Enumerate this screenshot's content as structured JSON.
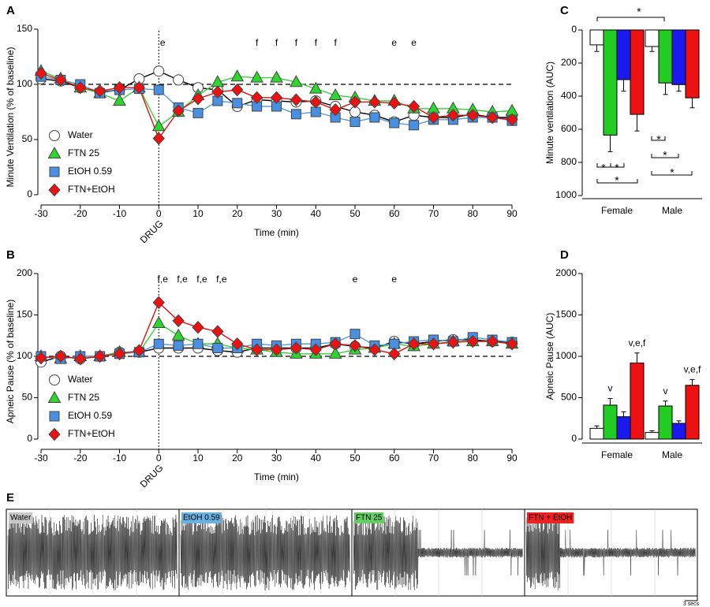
{
  "chart_data": [
    {
      "type": "line",
      "panel": "A",
      "ylabel": "Minute Ventilation (% of baseline)",
      "xlabel": "Time (min)",
      "x": [
        -30,
        -25,
        -20,
        -15,
        -10,
        -5,
        0,
        5,
        10,
        15,
        20,
        25,
        30,
        35,
        40,
        45,
        50,
        55,
        60,
        65,
        70,
        75,
        80,
        85,
        90
      ],
      "xlim": [
        -30,
        90
      ],
      "xticks": [
        -30,
        -20,
        -10,
        0,
        10,
        20,
        30,
        40,
        50,
        60,
        70,
        80,
        90
      ],
      "ylim": [
        0,
        150
      ],
      "yticks": [
        0,
        50,
        100,
        150
      ],
      "reference_line": 100,
      "event": {
        "x": 0,
        "label": "DRUG"
      },
      "legend": "lower left",
      "annotations": [
        {
          "x": 1,
          "text": "e"
        },
        {
          "x": 25,
          "text": "f"
        },
        {
          "x": 30,
          "text": "f"
        },
        {
          "x": 35,
          "text": "f"
        },
        {
          "x": 40,
          "text": "f"
        },
        {
          "x": 45,
          "text": "f"
        },
        {
          "x": 60,
          "text": "e"
        },
        {
          "x": 65,
          "text": "e"
        }
      ],
      "series": [
        {
          "name": "Water",
          "marker": "circle",
          "color": "#ffffff",
          "line_color": "#000000",
          "values": [
            105,
            103,
            97,
            93,
            95,
            105,
            112,
            104,
            97,
            95,
            80,
            86,
            85,
            84,
            85,
            80,
            75,
            72,
            66,
            72,
            70,
            70,
            73,
            70,
            70
          ]
        },
        {
          "name": "FTN 25",
          "marker": "triangle",
          "color": "#2fd62f",
          "line_color": "#3ccf3c",
          "values": [
            112,
            105,
            97,
            92,
            85,
            97,
            62,
            75,
            90,
            102,
            107,
            106,
            106,
            102,
            96,
            90,
            88,
            85,
            85,
            78,
            78,
            78,
            77,
            75,
            76
          ]
        },
        {
          "name": "EtOH 0.59",
          "marker": "square",
          "color": "#4a90e2",
          "line_color": "#5b9bd5",
          "values": [
            107,
            104,
            100,
            92,
            95,
            96,
            95,
            79,
            74,
            85,
            83,
            80,
            80,
            73,
            75,
            70,
            66,
            70,
            65,
            63,
            68,
            68,
            70,
            70,
            67
          ]
        },
        {
          "name": "FTN+EtOH",
          "marker": "diamond",
          "color": "#ee1111",
          "line_color": "#dd1111",
          "values": [
            110,
            104,
            97,
            94,
            97,
            97,
            51,
            76,
            87,
            93,
            95,
            88,
            88,
            86,
            84,
            77,
            84,
            84,
            83,
            80,
            70,
            72,
            72,
            70,
            68
          ]
        }
      ]
    },
    {
      "type": "line",
      "panel": "B",
      "ylabel": "Apneic Pause (% of baseline)",
      "xlabel": "Time (min)",
      "x": [
        -30,
        -25,
        -20,
        -15,
        -10,
        -5,
        0,
        5,
        10,
        15,
        20,
        25,
        30,
        35,
        40,
        45,
        50,
        55,
        60,
        65,
        70,
        75,
        80,
        85,
        90
      ],
      "xlim": [
        -30,
        90
      ],
      "xticks": [
        -30,
        -20,
        -10,
        0,
        10,
        20,
        30,
        40,
        50,
        60,
        70,
        80,
        90
      ],
      "ylim": [
        0,
        200
      ],
      "yticks": [
        0,
        50,
        100,
        150,
        200
      ],
      "reference_line": 100,
      "event": {
        "x": 0,
        "label": "DRUG"
      },
      "legend": "lower left",
      "annotations": [
        {
          "x": 1,
          "text": "f,e"
        },
        {
          "x": 6,
          "text": "f,e"
        },
        {
          "x": 11,
          "text": "f,e"
        },
        {
          "x": 16,
          "text": "f,e"
        },
        {
          "x": 50,
          "text": "e"
        },
        {
          "x": 60,
          "text": "e"
        }
      ],
      "series": [
        {
          "name": "Water",
          "marker": "circle",
          "color": "#ffffff",
          "line_color": "#000000",
          "values": [
            93,
            100,
            97,
            100,
            105,
            105,
            110,
            110,
            110,
            107,
            105,
            110,
            110,
            110,
            110,
            115,
            112,
            110,
            118,
            115,
            118,
            120,
            120,
            118,
            117
          ]
        },
        {
          "name": "FTN 25",
          "marker": "triangle",
          "color": "#2fd62f",
          "line_color": "#3ccf3c",
          "values": [
            100,
            97,
            100,
            100,
            105,
            105,
            140,
            125,
            115,
            115,
            110,
            108,
            105,
            103,
            103,
            103,
            108,
            110,
            115,
            112,
            115,
            118,
            118,
            118,
            115
          ]
        },
        {
          "name": "EtOH 0.59",
          "marker": "square",
          "color": "#4a90e2",
          "line_color": "#5b9bd5",
          "values": [
            100,
            97,
            100,
            100,
            103,
            105,
            115,
            113,
            115,
            110,
            110,
            115,
            113,
            115,
            115,
            117,
            127,
            113,
            115,
            118,
            120,
            118,
            123,
            120,
            117
          ]
        },
        {
          "name": "FTN+EtOH",
          "marker": "diamond",
          "color": "#ee1111",
          "line_color": "#dd1111",
          "values": [
            98,
            100,
            97,
            100,
            103,
            107,
            165,
            143,
            135,
            130,
            115,
            108,
            108,
            110,
            108,
            115,
            113,
            108,
            103,
            115,
            115,
            117,
            118,
            118,
            115
          ]
        }
      ]
    },
    {
      "type": "bar",
      "panel": "C",
      "ylabel": "Minute ventilation (AUC)",
      "categories": [
        "Female",
        "Male"
      ],
      "ylim": [
        0,
        1000
      ],
      "yticks": [
        0,
        200,
        400,
        600,
        800,
        1000
      ],
      "y_inverted": true,
      "significance": [
        "*",
        "*",
        "*",
        "*",
        "*",
        "*",
        "*"
      ],
      "series": [
        {
          "name": "Water",
          "color": "#ffffff",
          "values": [
            90,
            100
          ],
          "errors": [
            40,
            30
          ]
        },
        {
          "name": "FTN 25",
          "color": "#22cc22",
          "values": [
            635,
            320
          ],
          "errors": [
            100,
            70
          ]
        },
        {
          "name": "EtOH 0.59",
          "color": "#1a1aee",
          "values": [
            300,
            330
          ],
          "errors": [
            70,
            40
          ]
        },
        {
          "name": "FTN+EtOH",
          "color": "#ee1111",
          "values": [
            510,
            410
          ],
          "errors": [
            100,
            60
          ]
        }
      ]
    },
    {
      "type": "bar",
      "panel": "D",
      "ylabel": "Apneic Pause (AUC)",
      "categories": [
        "Female",
        "Male"
      ],
      "ylim": [
        0,
        2000
      ],
      "yticks": [
        0,
        500,
        1000,
        1500,
        2000
      ],
      "series": [
        {
          "name": "Water",
          "color": "#ffffff",
          "values": [
            130,
            80
          ],
          "errors": [
            30,
            20
          ]
        },
        {
          "name": "FTN 25",
          "color": "#22cc22",
          "values": [
            410,
            400
          ],
          "errors": [
            80,
            60
          ],
          "labels": [
            "v",
            "v"
          ]
        },
        {
          "name": "EtOH 0.59",
          "color": "#1a1aee",
          "values": [
            270,
            190
          ],
          "errors": [
            60,
            30
          ]
        },
        {
          "name": "FTN+EtOH",
          "color": "#ee1111",
          "values": [
            920,
            650
          ],
          "errors": [
            120,
            70
          ],
          "labels": [
            "v,e,f",
            "v,e,f"
          ]
        }
      ]
    }
  ],
  "traces": {
    "panel": "E",
    "labels": [
      "Water",
      "EtOH 0.59",
      "FTN 25",
      "FTN + EtOH"
    ],
    "time_scale": "3 secs"
  }
}
